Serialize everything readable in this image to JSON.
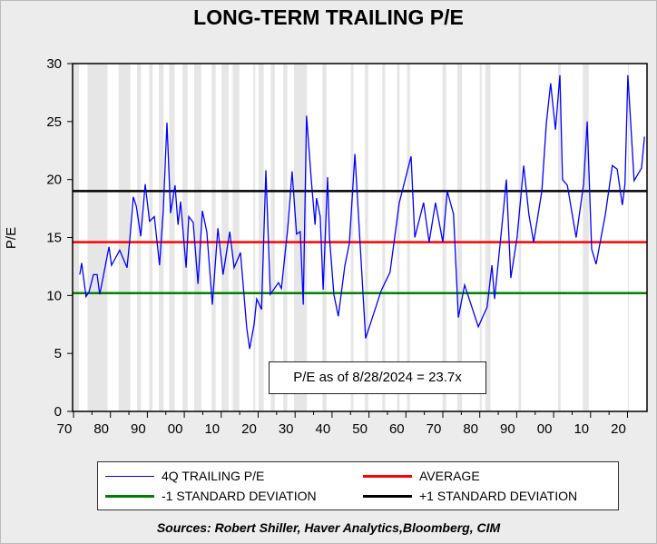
{
  "chart_data": {
    "type": "line",
    "title": "LONG-TERM TRAILING P/E",
    "xlabel": "",
    "ylabel": "P/E",
    "ylim": [
      0,
      30
    ],
    "xlim": [
      1870,
      2025
    ],
    "y_ticks": [
      "0",
      "5",
      "10",
      "15",
      "20",
      "25",
      "30"
    ],
    "y_tick_values": [
      0,
      5,
      10,
      15,
      20,
      25,
      30
    ],
    "x_ticks": [
      "70",
      "80",
      "90",
      "00",
      "10",
      "20",
      "30",
      "40",
      "50",
      "60",
      "70",
      "80",
      "90",
      "00",
      "10",
      "20"
    ],
    "x_tick_values": [
      1870,
      1880,
      1890,
      1900,
      1910,
      1920,
      1930,
      1940,
      1950,
      1960,
      1970,
      1980,
      1990,
      2000,
      2010,
      2020
    ],
    "grid": false,
    "legend_placement": "bottom",
    "series": [
      {
        "name": "4Q TRAILING P/E",
        "color": "#0000ff",
        "x": [
          1871.7,
          1872.2,
          1873.4,
          1874.2,
          1875.4,
          1876.4,
          1877.1,
          1877.9,
          1879.6,
          1880.3,
          1882.5,
          1884.5,
          1885.2,
          1886.2,
          1887,
          1888.2,
          1889.4,
          1890.6,
          1891.9,
          1893.3,
          1894.3,
          1895.3,
          1896.3,
          1897.5,
          1898.3,
          1899,
          1900.5,
          1901.2,
          1902.4,
          1903.7,
          1904.9,
          1906.1,
          1907.6,
          1909.1,
          1910.5,
          1912.3,
          1913.5,
          1915.2,
          1916.9,
          1917.7,
          1918.9,
          1919.6,
          1920.9,
          1922.1,
          1923.3,
          1925.5,
          1926.3,
          1928,
          1929.2,
          1930.4,
          1931.4,
          1932.2,
          1933.1,
          1934.4,
          1935.4,
          1935.8,
          1936.8,
          1937.6,
          1938.8,
          1939.3,
          1940.5,
          1941.7,
          1943.5,
          1944.7,
          1946.2,
          1949.1,
          1953.3,
          1955.7,
          1958.2,
          1961.4,
          1962.4,
          1964.8,
          1966.3,
          1968,
          1970,
          1971.2,
          1972.9,
          1974.2,
          1975.9,
          1979.6,
          1982,
          1983.3,
          1984,
          1986,
          1987.2,
          1988.4,
          1990.1,
          1991.9,
          1993.3,
          1994.6,
          1996.8,
          1998,
          1999.2,
          2000.5,
          2001.7,
          2002.4,
          2003.7,
          2006.1,
          2008.1,
          2009.1,
          2010.3,
          2011.5,
          2014,
          2015.9,
          2017.2,
          2018.6,
          2019.3,
          2020.1,
          2021.8,
          2023.8,
          2024.6
        ],
        "values": [
          11.8,
          12.8,
          9.9,
          10.3,
          11.8,
          11.8,
          10.1,
          11.4,
          14.2,
          12.6,
          13.9,
          12.4,
          14.7,
          18.5,
          17.7,
          15.1,
          19.6,
          16.4,
          16.8,
          12.6,
          17.3,
          24.9,
          17.1,
          19.5,
          16.1,
          18.1,
          12.4,
          16.8,
          16.3,
          11.0,
          17.3,
          15.5,
          9.2,
          15.8,
          11.8,
          15.5,
          12.4,
          13.7,
          7.2,
          5.4,
          7.5,
          9.7,
          8.8,
          20.8,
          10.1,
          11.1,
          10.6,
          15.8,
          20.7,
          15.3,
          15.5,
          9.2,
          25.5,
          19.9,
          16.1,
          18.4,
          16.8,
          10.5,
          20.2,
          15.0,
          10.1,
          8.2,
          12.6,
          14.5,
          22.2,
          6.3,
          10.4,
          12.0,
          18.0,
          22.0,
          15.0,
          18.0,
          14.6,
          18.0,
          14.6,
          19.0,
          17.0,
          8.1,
          10.9,
          7.3,
          9.0,
          12.6,
          9.7,
          16.0,
          20.0,
          11.5,
          15.0,
          21.2,
          17.0,
          14.6,
          19.0,
          24.8,
          28.3,
          24.3,
          29.0,
          20.0,
          19.5,
          15.0,
          19.6,
          25.0,
          14.0,
          12.7,
          17.0,
          21.2,
          20.9,
          17.8,
          19.6,
          29.0,
          19.9,
          21.0,
          23.7
        ]
      },
      {
        "name": "AVERAGE",
        "color": "#ff0000",
        "value": 14.6
      },
      {
        "name": "-1 STANDARD DEVIATION",
        "color": "#008000",
        "value": 10.2
      },
      {
        "name": "+1 STANDARD DEVIATION",
        "color": "#000000",
        "value": 19.0
      }
    ],
    "shaded_periods": [
      [
        1870,
        1871.5
      ],
      [
        1873.8,
        1879.2
      ],
      [
        1882.2,
        1885.4
      ],
      [
        1887.2,
        1888.3
      ],
      [
        1890.5,
        1891.4
      ],
      [
        1893.1,
        1894.4
      ],
      [
        1895.9,
        1897.4
      ],
      [
        1899.5,
        1900.9
      ],
      [
        1902.7,
        1904.6
      ],
      [
        1907.4,
        1908.5
      ],
      [
        1910.1,
        1912
      ],
      [
        1913.1,
        1914.9
      ],
      [
        1918.7,
        1919.2
      ],
      [
        1920.1,
        1921.5
      ],
      [
        1923.4,
        1924.5
      ],
      [
        1926.8,
        1927.9
      ],
      [
        1929.7,
        1933.2
      ],
      [
        1937.4,
        1938.5
      ],
      [
        1945.1,
        1945.8
      ],
      [
        1948.9,
        1949.8
      ],
      [
        1953.6,
        1954.4
      ],
      [
        1957.6,
        1958.3
      ],
      [
        1960.3,
        1961.1
      ],
      [
        1969.9,
        1970.9
      ],
      [
        1973.9,
        1975.2
      ],
      [
        1980,
        1980.5
      ],
      [
        1981.5,
        1982.9
      ],
      [
        1990.5,
        1991.2
      ],
      [
        2001.2,
        2001.9
      ],
      [
        2007.9,
        2009.5
      ],
      [
        2020.1,
        2020.4
      ]
    ],
    "annotation": "P/E as of 8/28/2024 = 23.7x",
    "source": "Sources:  Robert Shiller, Haver Analytics,Bloomberg, CIM"
  }
}
